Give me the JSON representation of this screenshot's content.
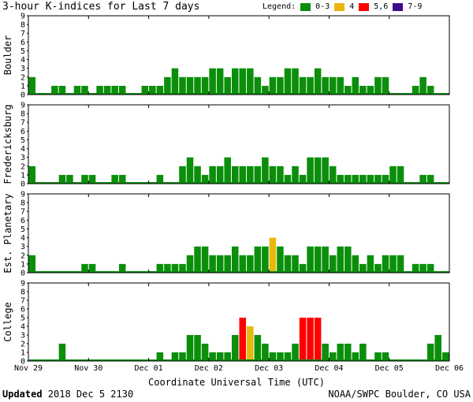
{
  "header": {
    "title": "3-hour K-indices for Last 7 days",
    "legend_title": "Legend:",
    "legend": [
      {
        "label": "0-3",
        "color": "#0b8f0b"
      },
      {
        "label": "4",
        "color": "#e8b90c"
      },
      {
        "label": "5,6",
        "color": "#ff0000"
      },
      {
        "label": "7-9",
        "color": "#3f0a8a"
      }
    ]
  },
  "footer": {
    "xlabel": "Coordinate Universal Time (UTC)",
    "updated_label": "Updated",
    "updated_value": " 2018 Dec  5 2130",
    "credit": "NOAA/SWPC Boulder, CO USA"
  },
  "chart_data": {
    "type": "bar",
    "title": "3-hour K-indices for Last 7 days",
    "xlabel": "Coordinate Universal Time (UTC)",
    "x_ticks": [
      "Nov 29",
      "Nov 30",
      "Dec 01",
      "Dec 02",
      "Dec 03",
      "Dec 04",
      "Dec 05",
      "Dec 06"
    ],
    "ylim": [
      0,
      9
    ],
    "y_ticks": [
      "0",
      "1",
      "2",
      "3",
      "4",
      "5",
      "6",
      "7",
      "8",
      "9"
    ],
    "bins_per_day": 8,
    "color_scale": [
      {
        "range": "0-3",
        "color": "#0b8f0b"
      },
      {
        "range": "4",
        "color": "#e8b90c"
      },
      {
        "range": "5,6",
        "color": "#ff0000"
      },
      {
        "range": "7-9",
        "color": "#3f0a8a"
      }
    ],
    "series": [
      {
        "name": "Boulder",
        "values": [
          2,
          0,
          0,
          1,
          1,
          0,
          1,
          1,
          0,
          1,
          1,
          1,
          1,
          0,
          0,
          1,
          1,
          1,
          2,
          3,
          2,
          2,
          2,
          2,
          3,
          3,
          2,
          3,
          3,
          3,
          2,
          1,
          2,
          2,
          3,
          3,
          2,
          2,
          3,
          2,
          2,
          2,
          1,
          2,
          1,
          1,
          2,
          2,
          0,
          0,
          0,
          1,
          2,
          1,
          0
        ]
      },
      {
        "name": "Fredericksburg",
        "values": [
          2,
          0,
          0,
          0,
          1,
          1,
          0,
          1,
          1,
          0,
          0,
          1,
          1,
          0,
          0,
          0,
          0,
          1,
          0,
          0,
          2,
          3,
          2,
          1,
          2,
          2,
          3,
          2,
          2,
          2,
          2,
          3,
          2,
          2,
          1,
          2,
          1,
          3,
          3,
          3,
          2,
          1,
          1,
          1,
          1,
          1,
          1,
          1,
          2,
          2,
          0,
          0,
          1,
          1,
          0,
          0
        ]
      },
      {
        "name": "Est. Planetary",
        "values": [
          2,
          0,
          0,
          0,
          0,
          0,
          0,
          1,
          1,
          0,
          0,
          0,
          1,
          0,
          0,
          0,
          0,
          1,
          1,
          1,
          1,
          2,
          3,
          3,
          2,
          2,
          2,
          3,
          2,
          2,
          3,
          3,
          4,
          3,
          2,
          2,
          1,
          3,
          3,
          3,
          2,
          3,
          3,
          2,
          1,
          2,
          1,
          2,
          2,
          2,
          0,
          1,
          1,
          1,
          0
        ]
      },
      {
        "name": "College",
        "values": [
          0,
          0,
          0,
          0,
          2,
          0,
          0,
          0,
          0,
          0,
          0,
          0,
          0,
          0,
          0,
          0,
          0,
          1,
          0,
          1,
          1,
          3,
          3,
          2,
          1,
          1,
          1,
          3,
          5,
          4,
          3,
          2,
          1,
          1,
          1,
          2,
          5,
          5,
          5,
          2,
          1,
          2,
          2,
          1,
          2,
          0,
          1,
          1,
          0,
          0,
          0,
          0,
          0,
          2,
          3,
          1,
          0
        ]
      }
    ]
  }
}
